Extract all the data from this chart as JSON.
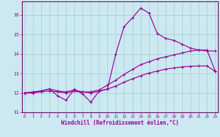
{
  "xlabel": "Windchill (Refroidissement éolien,°C)",
  "background_color": "#cce8f0",
  "grid_color": "#a8cfd8",
  "line_color": "#990099",
  "spine_color": "#660066",
  "x_ticks": [
    0,
    1,
    2,
    3,
    4,
    5,
    6,
    7,
    8,
    9,
    10,
    11,
    12,
    13,
    14,
    15,
    16,
    17,
    18,
    19,
    20,
    21,
    22,
    23
  ],
  "y_ticks": [
    11,
    12,
    13,
    14,
    15,
    16
  ],
  "xlim": [
    -0.3,
    23.3
  ],
  "ylim": [
    11.0,
    16.7
  ],
  "series1_x": [
    0,
    1,
    2,
    3,
    4,
    5,
    6,
    7,
    8,
    9,
    10,
    11,
    12,
    13,
    14,
    15,
    16,
    17,
    18,
    19,
    20,
    21,
    22,
    23
  ],
  "series1_y": [
    12.0,
    12.0,
    12.1,
    12.2,
    11.85,
    11.62,
    12.18,
    11.95,
    11.52,
    12.1,
    12.2,
    14.0,
    15.4,
    15.85,
    16.35,
    16.1,
    15.05,
    14.8,
    14.7,
    14.5,
    14.3,
    14.2,
    14.15,
    14.15
  ],
  "series2_x": [
    0,
    1,
    2,
    3,
    4,
    5,
    6,
    7,
    8,
    9,
    10,
    11,
    12,
    13,
    14,
    15,
    16,
    17,
    18,
    19,
    20,
    21,
    22,
    23
  ],
  "series2_y": [
    12.0,
    12.05,
    12.1,
    12.2,
    12.1,
    12.05,
    12.15,
    12.05,
    12.05,
    12.15,
    12.4,
    12.65,
    12.95,
    13.2,
    13.45,
    13.6,
    13.75,
    13.85,
    13.95,
    14.05,
    14.15,
    14.2,
    14.2,
    13.1
  ],
  "series3_x": [
    0,
    1,
    2,
    3,
    4,
    5,
    6,
    7,
    8,
    9,
    10,
    11,
    12,
    13,
    14,
    15,
    16,
    17,
    18,
    19,
    20,
    21,
    22,
    23
  ],
  "series3_y": [
    12.0,
    12.0,
    12.05,
    12.1,
    12.05,
    12.0,
    12.08,
    12.04,
    12.0,
    12.08,
    12.2,
    12.35,
    12.55,
    12.72,
    12.88,
    13.02,
    13.12,
    13.22,
    13.28,
    13.33,
    13.37,
    13.38,
    13.38,
    13.1
  ],
  "marker": "+"
}
